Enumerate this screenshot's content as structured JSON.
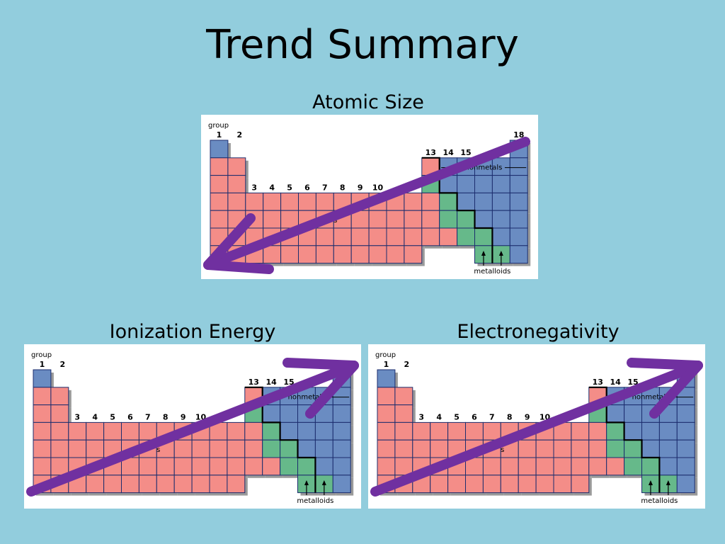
{
  "title": "Trend Summary",
  "panels": [
    {
      "id": "atomic-size",
      "caption": "Atomic Size",
      "arrow_direction": "toward lower-left (group 1, bottom period)"
    },
    {
      "id": "ionization-energy",
      "caption": "Ionization Energy",
      "arrow_direction": "toward upper-right (group 18, top period)"
    },
    {
      "id": "electronegativity",
      "caption": "Electronegativity",
      "arrow_direction": "toward upper-right (group 18, top period)"
    }
  ],
  "table_labels": {
    "group_word": "group",
    "group_numbers": [
      "1",
      "2",
      "3",
      "4",
      "5",
      "6",
      "7",
      "8",
      "9",
      "10",
      "13",
      "14",
      "15",
      "18"
    ],
    "nonmetals_label": "nonmetals",
    "metalloids_label": "metalloids",
    "metals_label_fragment": "s"
  },
  "colors": {
    "background": "#92cddd",
    "metal": "#f48d88",
    "nonmetal": "#6a8cc2",
    "metalloid": "#66b98a",
    "grid_line": "#1c2d6e",
    "arrow": "#7030a0"
  }
}
